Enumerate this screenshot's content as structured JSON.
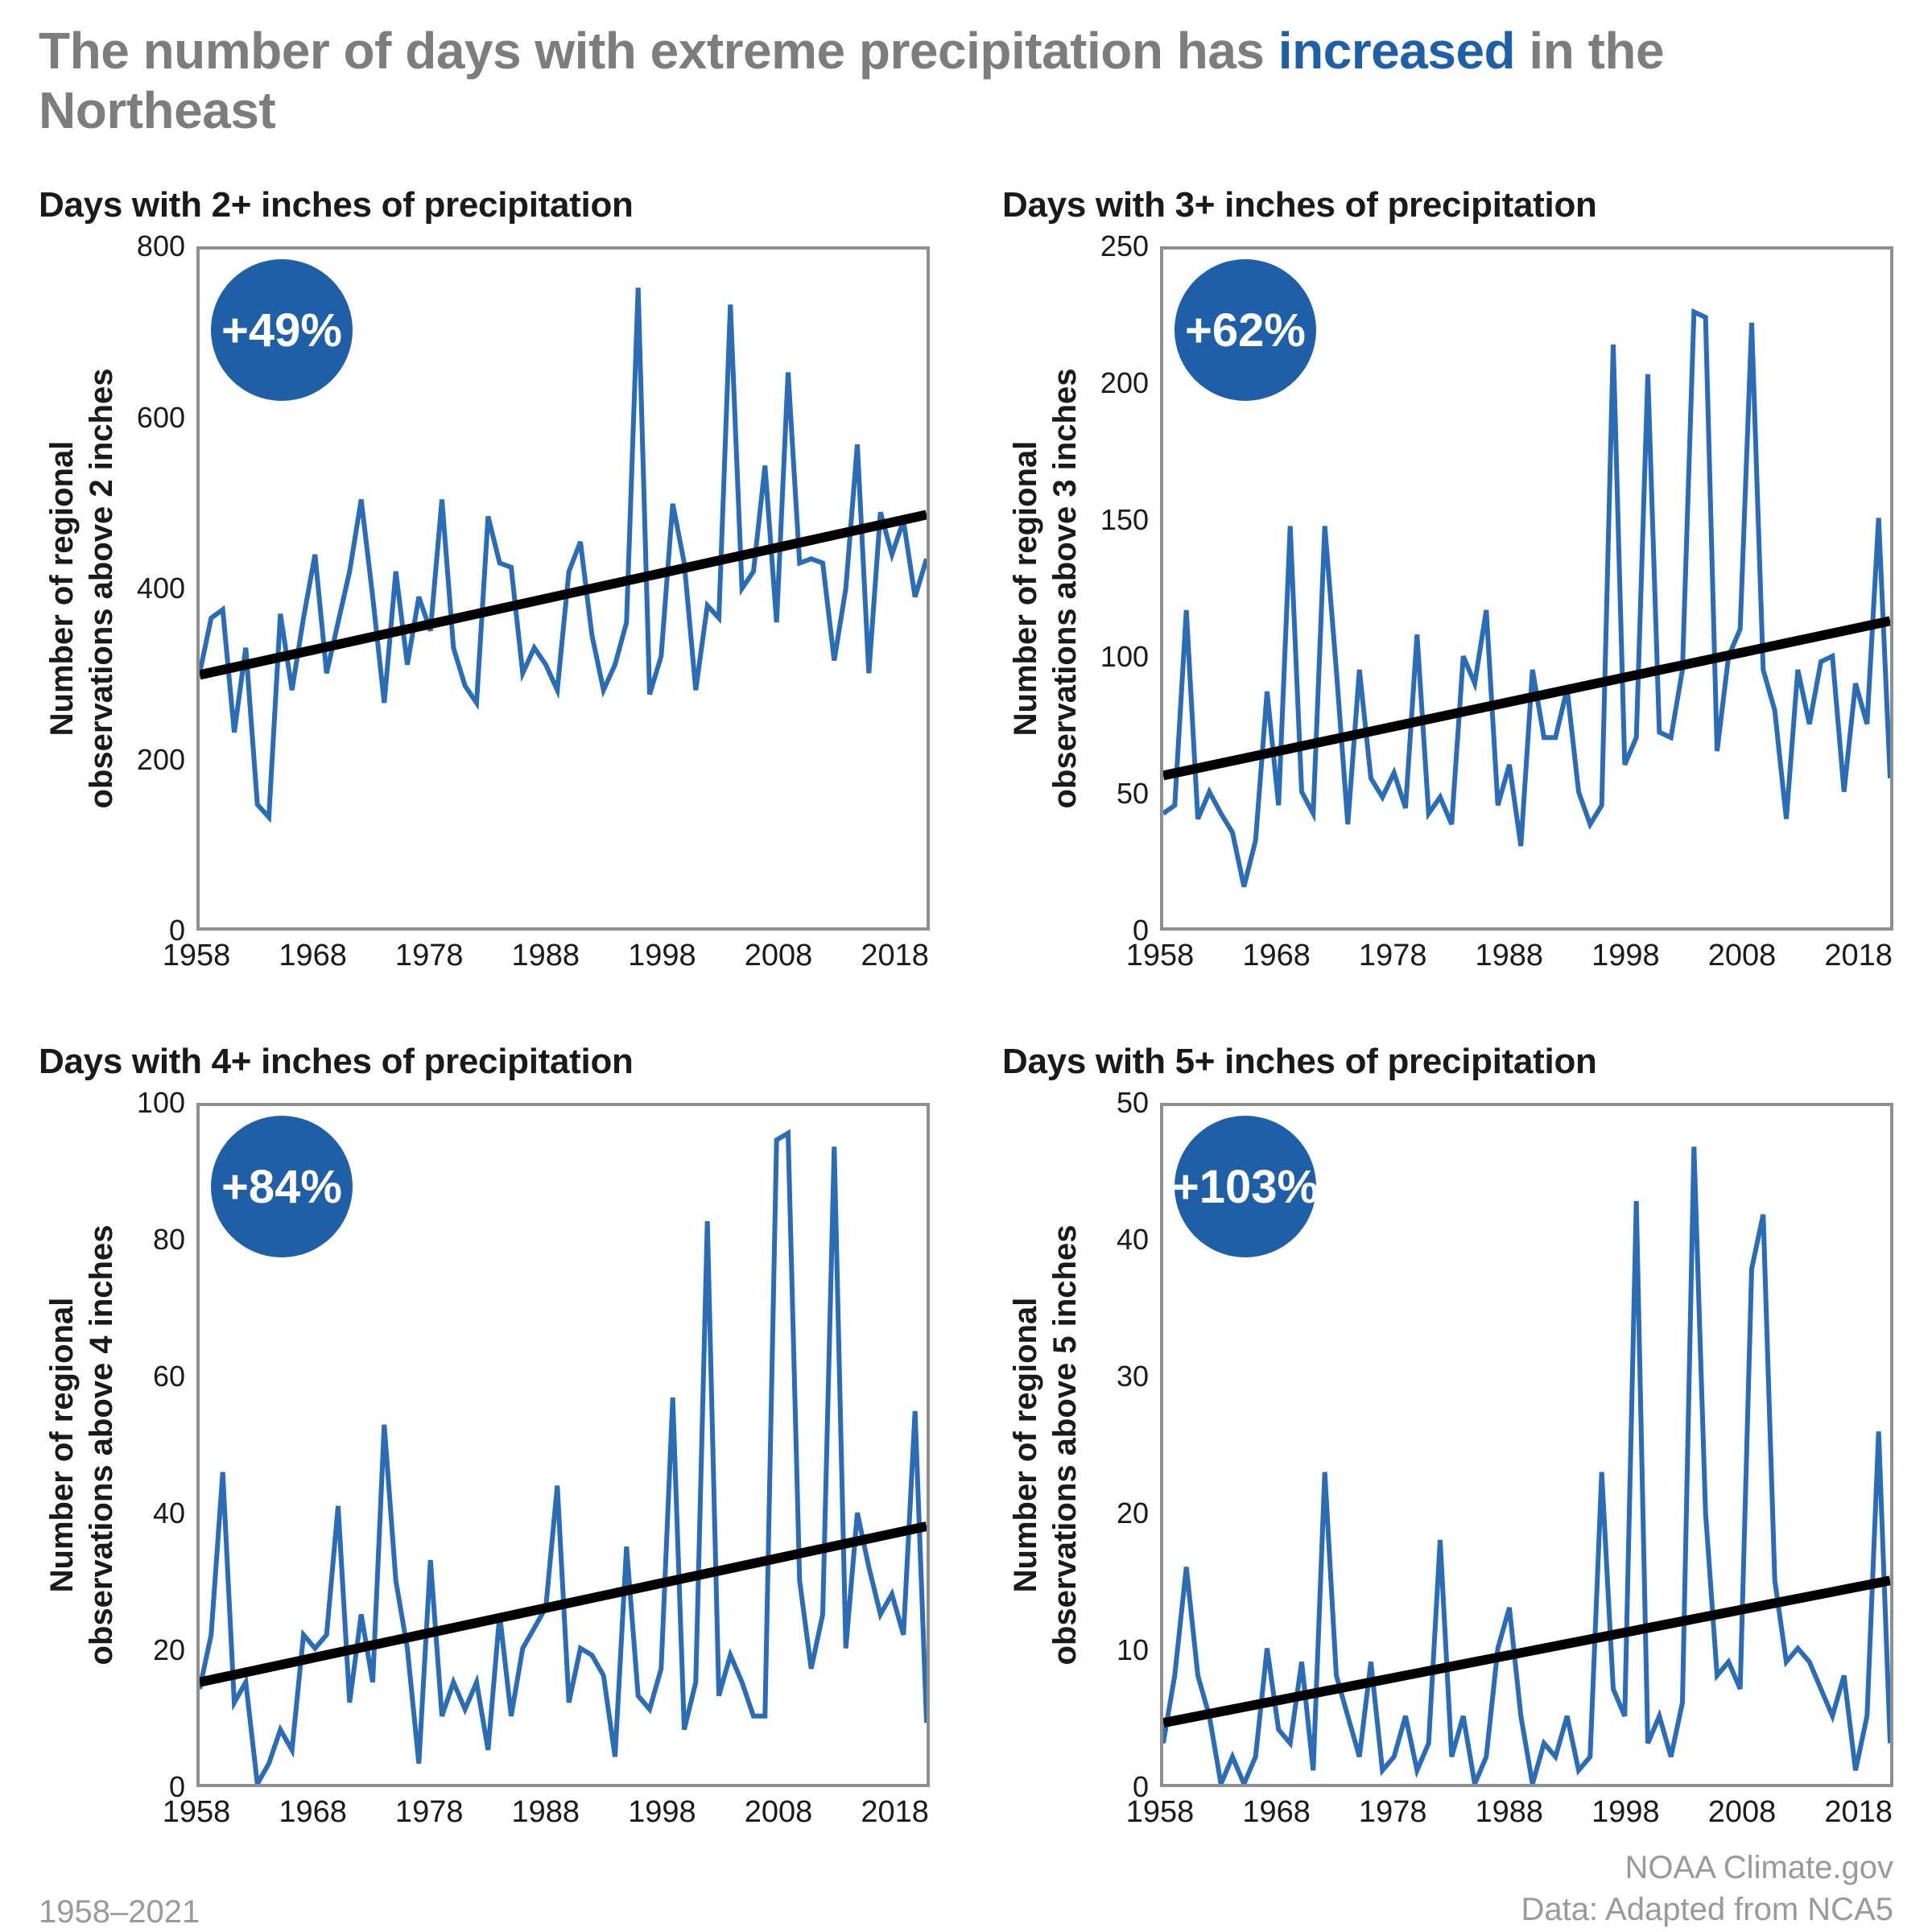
{
  "page": {
    "title_prefix": "The number of days with extreme precipitation has ",
    "title_highlight": "increased",
    "title_suffix": " in the Northeast",
    "footer_left": "1958–2021",
    "footer_right_line1": "NOAA Climate.gov",
    "footer_right_line2": "Data: Adapted from NCA5"
  },
  "colors": {
    "line": "#2a6cb5",
    "trend": "#000000",
    "badge_bg": "#1f5fa8",
    "frame": "#8f8f8f",
    "accent_blue": "#1f5fa8"
  },
  "chart_data": [
    {
      "type": "line",
      "title": "Days with 2+ inches of precipitation",
      "badge": "+49%",
      "ylabel_line1": "Number of regional",
      "ylabel_line2": "observations above 2 inches",
      "ylim": [
        0,
        800
      ],
      "yticks": [
        0,
        200,
        400,
        600,
        800
      ],
      "x_start": 1958,
      "x_end": 2021,
      "xticks": [
        1958,
        1968,
        1978,
        1988,
        1998,
        2008,
        2018
      ],
      "series": [
        {
          "name": "Annual observations above 2 inches",
          "values": [
            300,
            365,
            375,
            230,
            330,
            145,
            130,
            370,
            280,
            365,
            440,
            300,
            360,
            420,
            505,
            390,
            265,
            420,
            310,
            390,
            350,
            505,
            330,
            285,
            265,
            485,
            430,
            425,
            300,
            330,
            310,
            280,
            420,
            455,
            345,
            280,
            310,
            360,
            755,
            275,
            320,
            500,
            430,
            280,
            380,
            365,
            735,
            400,
            420,
            545,
            360,
            655,
            430,
            435,
            430,
            315,
            400,
            570,
            300,
            490,
            440,
            480,
            390,
            435
          ]
        }
      ],
      "trend": {
        "start": 298,
        "end": 487
      }
    },
    {
      "type": "line",
      "title": "Days with 3+ inches of precipitation",
      "badge": "+62%",
      "ylabel_line1": "Number of regional",
      "ylabel_line2": "observations above 3 inches",
      "ylim": [
        0,
        250
      ],
      "yticks": [
        0,
        50,
        100,
        150,
        200,
        250
      ],
      "x_start": 1958,
      "x_end": 2021,
      "xticks": [
        1958,
        1968,
        1978,
        1988,
        1998,
        2008,
        2018
      ],
      "series": [
        {
          "name": "Annual observations above 3 inches",
          "values": [
            42,
            45,
            117,
            40,
            50,
            42,
            35,
            15,
            32,
            87,
            45,
            148,
            50,
            42,
            148,
            95,
            38,
            95,
            55,
            48,
            57,
            44,
            108,
            42,
            48,
            38,
            100,
            90,
            117,
            45,
            60,
            30,
            95,
            70,
            70,
            88,
            50,
            38,
            45,
            215,
            60,
            70,
            204,
            72,
            70,
            95,
            227,
            225,
            65,
            100,
            110,
            223,
            95,
            80,
            40,
            95,
            75,
            98,
            100,
            50,
            90,
            75,
            151,
            55
          ]
        }
      ],
      "trend": {
        "start": 56,
        "end": 113
      }
    },
    {
      "type": "line",
      "title": "Days with 4+ inches of precipitation",
      "badge": "+84%",
      "ylabel_line1": "Number of regional",
      "ylabel_line2": "observations above 4 inches",
      "ylim": [
        0,
        100
      ],
      "yticks": [
        0,
        20,
        40,
        60,
        80,
        100
      ],
      "x_start": 1958,
      "x_end": 2021,
      "xticks": [
        1958,
        1968,
        1978,
        1988,
        1998,
        2008,
        2018
      ],
      "series": [
        {
          "name": "Annual observations above 4 inches",
          "values": [
            14,
            22,
            46,
            12,
            15,
            0,
            3,
            8,
            5,
            22,
            20,
            22,
            41,
            12,
            25,
            15,
            53,
            30,
            20,
            3,
            33,
            10,
            15,
            11,
            15,
            5,
            25,
            10,
            20,
            23,
            26,
            44,
            12,
            20,
            19,
            16,
            4,
            35,
            13,
            11,
            17,
            57,
            8,
            15,
            83,
            13,
            19,
            15,
            10,
            10,
            95,
            96,
            30,
            17,
            25,
            94,
            20,
            40,
            32,
            25,
            28,
            22,
            55,
            9
          ]
        }
      ],
      "trend": {
        "start": 15,
        "end": 38
      }
    },
    {
      "type": "line",
      "title": "Days with 5+ inches of precipitation",
      "badge": "+103%",
      "ylabel_line1": "Number of regional",
      "ylabel_line2": "observations above 5 inches",
      "ylim": [
        0,
        50
      ],
      "yticks": [
        0,
        10,
        20,
        30,
        40,
        50
      ],
      "x_start": 1958,
      "x_end": 2021,
      "xticks": [
        1958,
        1968,
        1978,
        1988,
        1998,
        2008,
        2018
      ],
      "series": [
        {
          "name": "Annual observations above 5 inches",
          "values": [
            3,
            8,
            16,
            8,
            5,
            0,
            2,
            0,
            2,
            10,
            4,
            3,
            9,
            1,
            23,
            8,
            5,
            2,
            9,
            1,
            2,
            5,
            1,
            3,
            18,
            2,
            5,
            0,
            2,
            10,
            13,
            5,
            0,
            3,
            2,
            5,
            1,
            2,
            23,
            7,
            5,
            43,
            3,
            5,
            2,
            6,
            47,
            20,
            8,
            9,
            7,
            38,
            42,
            15,
            9,
            10,
            9,
            7,
            5,
            8,
            1,
            5,
            26,
            3
          ]
        }
      ],
      "trend": {
        "start": 4.5,
        "end": 15
      }
    }
  ]
}
